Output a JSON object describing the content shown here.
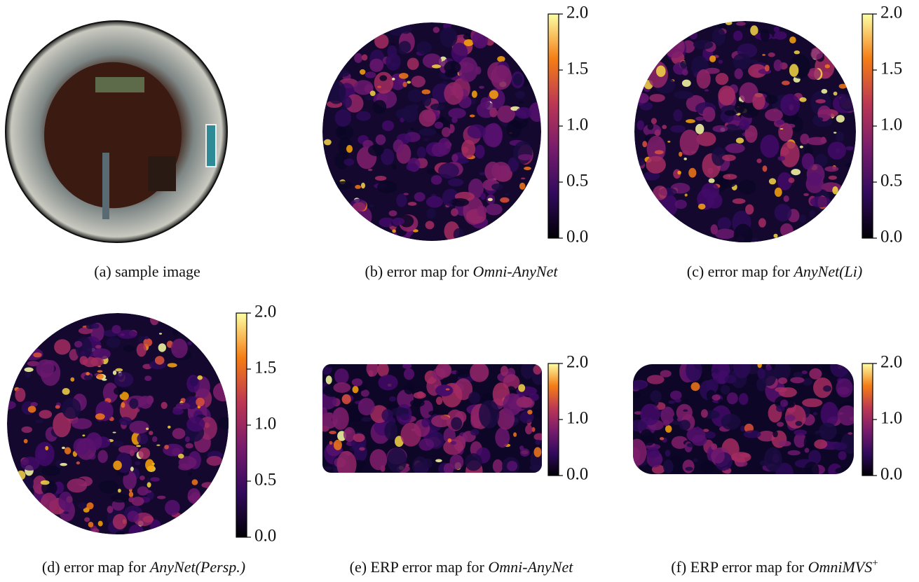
{
  "panels": [
    {
      "caption": {
        "prefix": "(a) sample image"
      }
    },
    {
      "caption": {
        "prefix": "(b) error map for ",
        "name": "Omni-AnyNet"
      },
      "colorbar": {
        "clim": [
          0,
          2
        ],
        "ticks": [
          {
            "value": 0,
            "label": "0.0"
          },
          {
            "value": 0.5,
            "label": "0.5"
          },
          {
            "value": 1,
            "label": "1.0"
          },
          {
            "value": 1.5,
            "label": "1.5"
          },
          {
            "value": 2,
            "label": "2.0"
          }
        ]
      }
    },
    {
      "caption": {
        "prefix": "(c) error map for ",
        "name": "AnyNet(Li)"
      },
      "colorbar": {
        "clim": [
          0,
          2
        ],
        "ticks": [
          {
            "value": 0,
            "label": "0.0"
          },
          {
            "value": 0.5,
            "label": "0.5"
          },
          {
            "value": 1,
            "label": "1.0"
          },
          {
            "value": 1.5,
            "label": "1.5"
          },
          {
            "value": 2,
            "label": "2.0"
          }
        ]
      }
    },
    {
      "caption": {
        "prefix": "(d) error map for ",
        "name": "AnyNet(Persp.)"
      },
      "colorbar": {
        "clim": [
          0,
          2
        ],
        "ticks": [
          {
            "value": 0,
            "label": "0.0"
          },
          {
            "value": 0.5,
            "label": "0.5"
          },
          {
            "value": 1,
            "label": "1.0"
          },
          {
            "value": 1.5,
            "label": "1.5"
          },
          {
            "value": 2,
            "label": "2.0"
          }
        ]
      }
    },
    {
      "caption": {
        "prefix": "(e) ERP error map for ",
        "name": "Omni-AnyNet"
      },
      "colorbar": {
        "clim": [
          0,
          2
        ],
        "ticks": [
          {
            "value": 0,
            "label": "0.0"
          },
          {
            "value": 1,
            "label": "1.0"
          },
          {
            "value": 2,
            "label": "2.0"
          }
        ]
      }
    },
    {
      "caption": {
        "prefix": "(f) ERP error map for ",
        "name": "OmniMVS",
        "superscript": "+"
      },
      "colorbar": {
        "clim": [
          0,
          2
        ],
        "ticks": [
          {
            "value": 0,
            "label": "0.0"
          },
          {
            "value": 1,
            "label": "1.0"
          },
          {
            "value": 2,
            "label": "2.0"
          }
        ]
      }
    }
  ]
}
